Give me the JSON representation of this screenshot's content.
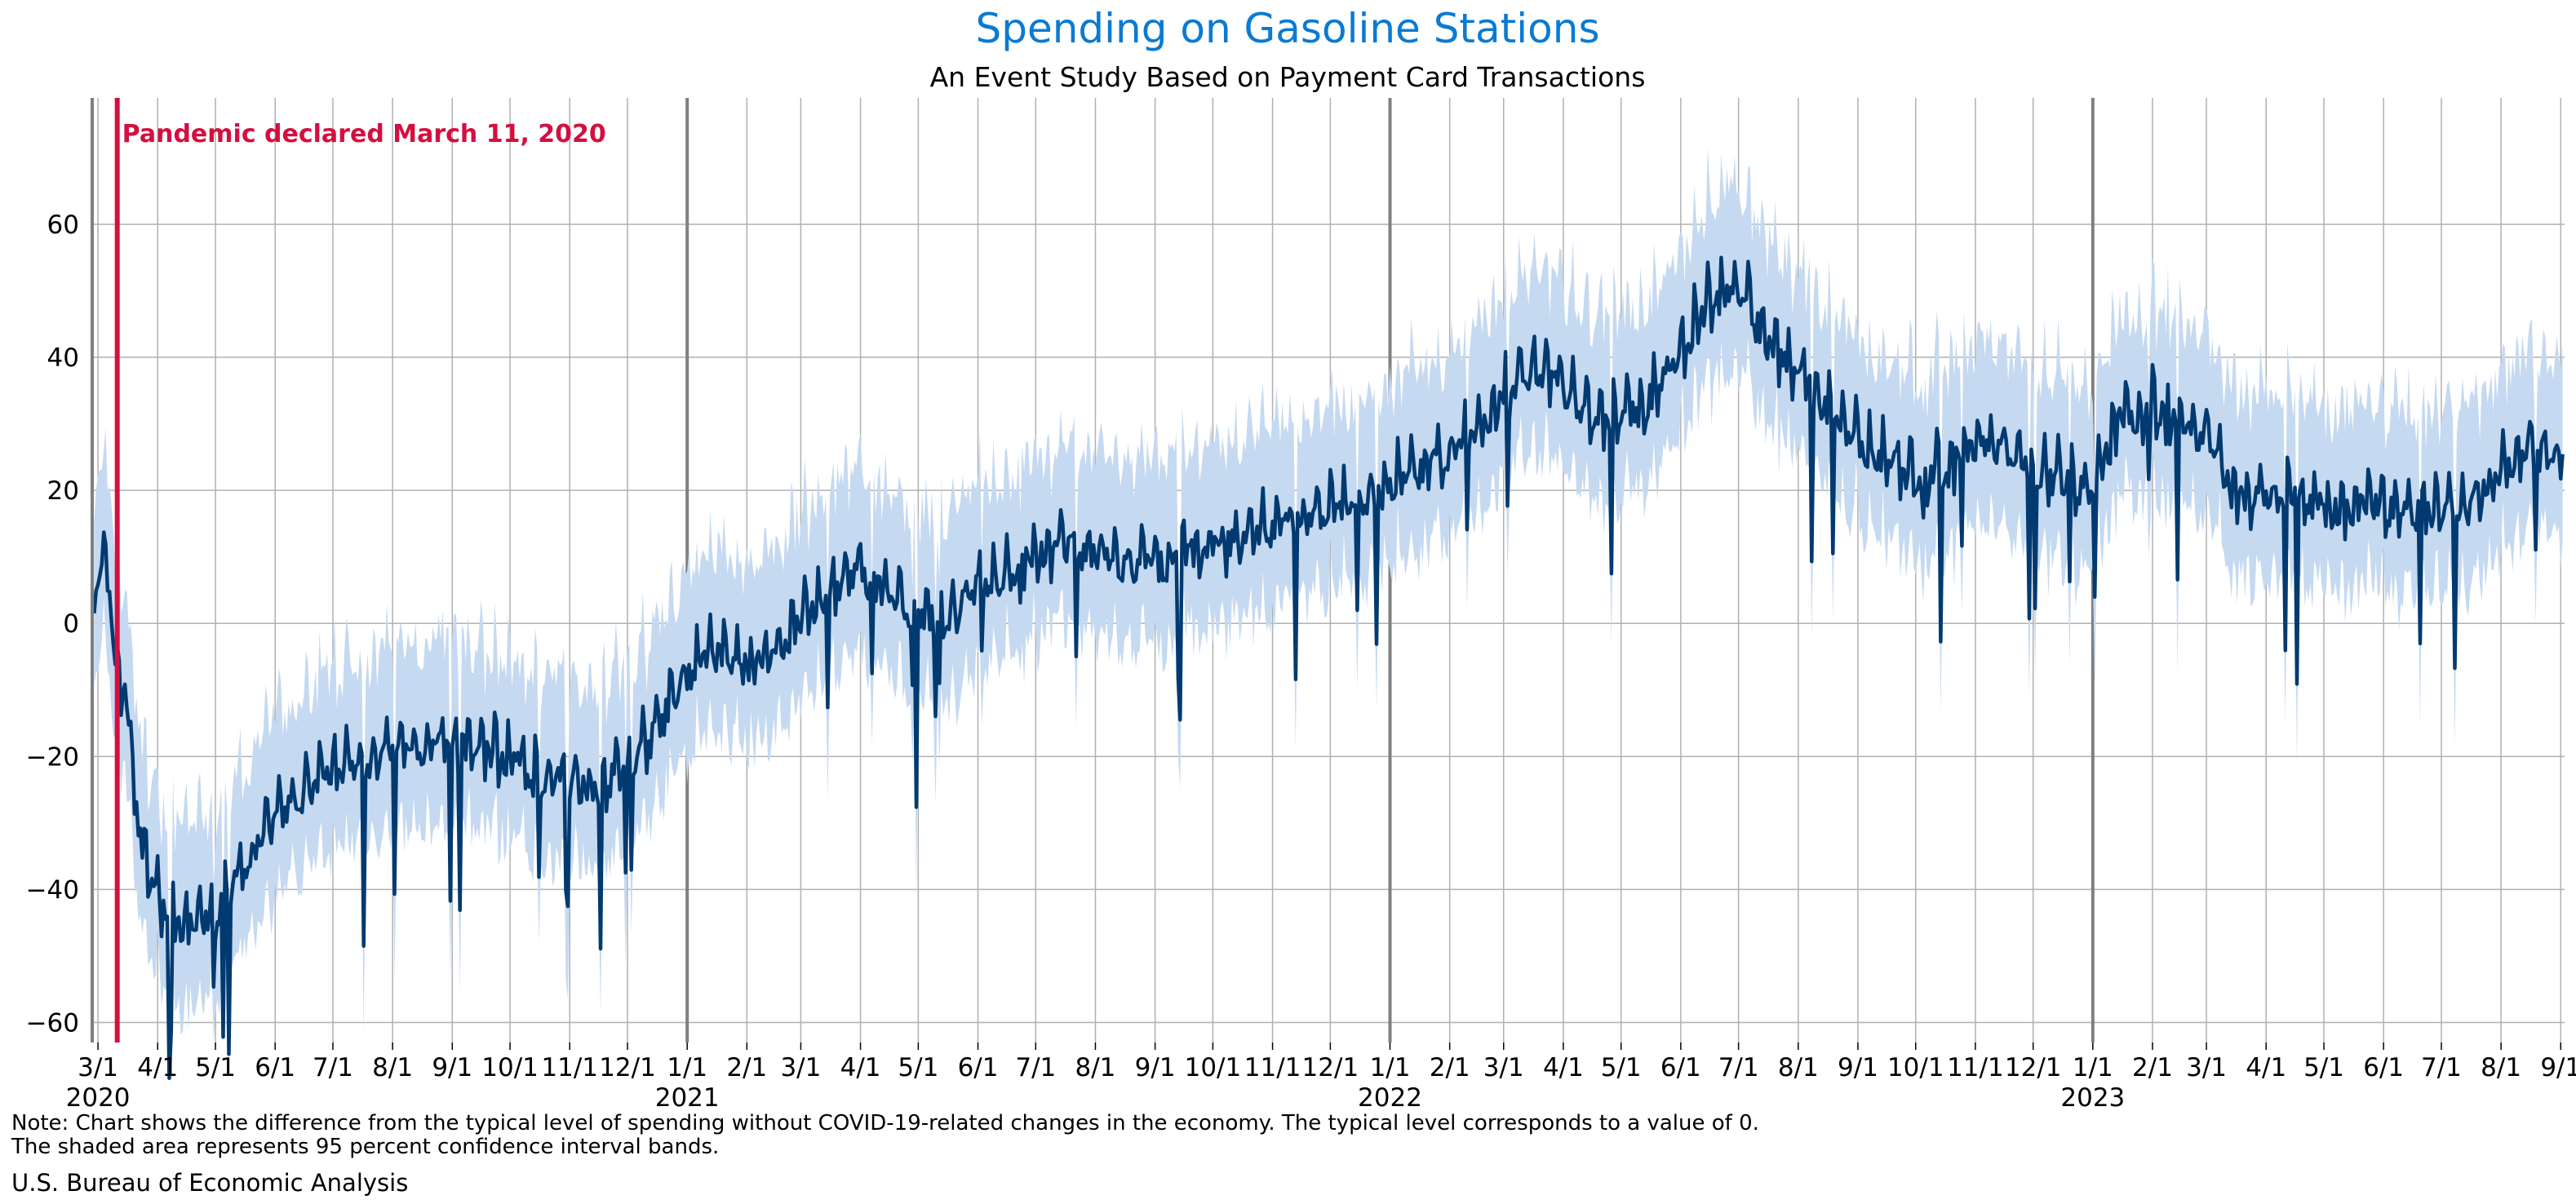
{
  "chart_data": {
    "type": "line",
    "title": "Spending on Gasoline Stations",
    "subtitle": "An Event Study Based on Payment Card Transactions",
    "xlabel": "",
    "ylabel": "",
    "ylim": [
      -63,
      79
    ],
    "yticks": [
      60,
      40,
      20,
      0,
      -20,
      -40,
      -60
    ],
    "yticklabels": [
      "60",
      "40",
      "20",
      "0",
      "−20",
      "−40",
      "−60"
    ],
    "xlim": [
      "2020-02-27",
      "2023-09-03"
    ],
    "grid": true,
    "x_ticks": [
      {
        "date": "2020-03-01",
        "label": "3/1",
        "year": "2020"
      },
      {
        "date": "2020-04-01",
        "label": "4/1"
      },
      {
        "date": "2020-05-01",
        "label": "5/1"
      },
      {
        "date": "2020-06-01",
        "label": "6/1"
      },
      {
        "date": "2020-07-01",
        "label": "7/1"
      },
      {
        "date": "2020-08-01",
        "label": "8/1"
      },
      {
        "date": "2020-09-01",
        "label": "9/1"
      },
      {
        "date": "2020-10-01",
        "label": "10/1"
      },
      {
        "date": "2020-11-01",
        "label": "11/1"
      },
      {
        "date": "2020-12-01",
        "label": "12/1"
      },
      {
        "date": "2021-01-01",
        "label": "1/1",
        "year": "2021",
        "major": true
      },
      {
        "date": "2021-02-01",
        "label": "2/1"
      },
      {
        "date": "2021-03-01",
        "label": "3/1"
      },
      {
        "date": "2021-04-01",
        "label": "4/1"
      },
      {
        "date": "2021-05-01",
        "label": "5/1"
      },
      {
        "date": "2021-06-01",
        "label": "6/1"
      },
      {
        "date": "2021-07-01",
        "label": "7/1"
      },
      {
        "date": "2021-08-01",
        "label": "8/1"
      },
      {
        "date": "2021-09-01",
        "label": "9/1"
      },
      {
        "date": "2021-10-01",
        "label": "10/1"
      },
      {
        "date": "2021-11-01",
        "label": "11/1"
      },
      {
        "date": "2021-12-01",
        "label": "12/1"
      },
      {
        "date": "2022-01-01",
        "label": "1/1",
        "year": "2022",
        "major": true
      },
      {
        "date": "2022-02-01",
        "label": "2/1"
      },
      {
        "date": "2022-03-01",
        "label": "3/1"
      },
      {
        "date": "2022-04-01",
        "label": "4/1"
      },
      {
        "date": "2022-05-01",
        "label": "5/1"
      },
      {
        "date": "2022-06-01",
        "label": "6/1"
      },
      {
        "date": "2022-07-01",
        "label": "7/1"
      },
      {
        "date": "2022-08-01",
        "label": "8/1"
      },
      {
        "date": "2022-09-01",
        "label": "9/1"
      },
      {
        "date": "2022-10-01",
        "label": "10/1"
      },
      {
        "date": "2022-11-01",
        "label": "11/1"
      },
      {
        "date": "2022-12-01",
        "label": "12/1"
      },
      {
        "date": "2023-01-01",
        "label": "1/1",
        "year": "2023",
        "major": true
      },
      {
        "date": "2023-02-01",
        "label": "2/1"
      },
      {
        "date": "2023-03-01",
        "label": "3/1"
      },
      {
        "date": "2023-04-01",
        "label": "4/1"
      },
      {
        "date": "2023-05-01",
        "label": "5/1"
      },
      {
        "date": "2023-06-01",
        "label": "6/1"
      },
      {
        "date": "2023-07-01",
        "label": "7/1"
      },
      {
        "date": "2023-08-01",
        "label": "8/1"
      },
      {
        "date": "2023-09-01",
        "label": "9/1"
      }
    ],
    "annotation": {
      "date": "2020-03-11",
      "label": "Pandemic declared March 11, 2020"
    },
    "series": [
      {
        "values_semimonthly": [
          [
            "2020-02-28",
            6
          ],
          [
            "2020-03-05",
            8
          ],
          [
            "2020-03-11",
            -8
          ],
          [
            "2020-03-16",
            -12
          ],
          [
            "2020-03-22",
            -32
          ],
          [
            "2020-04-01",
            -42
          ],
          [
            "2020-04-15",
            -46
          ],
          [
            "2020-05-01",
            -44
          ],
          [
            "2020-05-15",
            -38
          ],
          [
            "2020-06-01",
            -30
          ],
          [
            "2020-06-15",
            -26
          ],
          [
            "2020-07-01",
            -22
          ],
          [
            "2020-07-15",
            -21
          ],
          [
            "2020-08-01",
            -20
          ],
          [
            "2020-08-15",
            -19
          ],
          [
            "2020-09-01",
            -19
          ],
          [
            "2020-09-15",
            -19
          ],
          [
            "2020-10-01",
            -21
          ],
          [
            "2020-10-15",
            -24
          ],
          [
            "2020-11-01",
            -24
          ],
          [
            "2020-11-15",
            -25
          ],
          [
            "2020-12-01",
            -22
          ],
          [
            "2020-12-15",
            -17
          ],
          [
            "2021-01-01",
            -8
          ],
          [
            "2021-01-15",
            -5
          ],
          [
            "2021-02-01",
            -7
          ],
          [
            "2021-02-15",
            -5
          ],
          [
            "2021-03-01",
            0
          ],
          [
            "2021-03-15",
            4
          ],
          [
            "2021-04-01",
            7
          ],
          [
            "2021-04-15",
            4
          ],
          [
            "2021-05-01",
            1
          ],
          [
            "2021-05-15",
            0
          ],
          [
            "2021-06-01",
            5
          ],
          [
            "2021-06-15",
            7
          ],
          [
            "2021-07-01",
            10
          ],
          [
            "2021-07-15",
            11
          ],
          [
            "2021-08-01",
            10
          ],
          [
            "2021-08-15",
            8
          ],
          [
            "2021-09-01",
            8
          ],
          [
            "2021-09-15",
            10
          ],
          [
            "2021-10-01",
            11
          ],
          [
            "2021-10-15",
            12
          ],
          [
            "2021-11-01",
            14
          ],
          [
            "2021-11-15",
            15
          ],
          [
            "2021-12-01",
            16
          ],
          [
            "2021-12-15",
            18
          ],
          [
            "2022-01-01",
            20
          ],
          [
            "2022-01-15",
            22
          ],
          [
            "2022-02-01",
            25
          ],
          [
            "2022-02-15",
            29
          ],
          [
            "2022-03-01",
            33
          ],
          [
            "2022-03-15",
            38
          ],
          [
            "2022-04-01",
            35
          ],
          [
            "2022-04-15",
            30
          ],
          [
            "2022-05-01",
            30
          ],
          [
            "2022-05-15",
            33
          ],
          [
            "2022-06-01",
            40
          ],
          [
            "2022-06-15",
            48
          ],
          [
            "2022-07-01",
            50
          ],
          [
            "2022-07-15",
            42
          ],
          [
            "2022-08-01",
            37
          ],
          [
            "2022-08-15",
            32
          ],
          [
            "2022-09-01",
            27
          ],
          [
            "2022-09-15",
            24
          ],
          [
            "2022-10-01",
            22
          ],
          [
            "2022-10-15",
            22
          ],
          [
            "2022-11-01",
            27
          ],
          [
            "2022-11-15",
            26
          ],
          [
            "2022-12-01",
            23
          ],
          [
            "2022-12-15",
            21
          ],
          [
            "2023-01-01",
            20
          ],
          [
            "2023-01-15",
            30
          ],
          [
            "2023-02-01",
            32
          ],
          [
            "2023-02-15",
            30
          ],
          [
            "2023-03-01",
            28
          ],
          [
            "2023-03-15",
            19
          ],
          [
            "2023-04-01",
            18
          ],
          [
            "2023-04-15",
            18
          ],
          [
            "2023-05-01",
            17
          ],
          [
            "2023-05-15",
            17
          ],
          [
            "2023-06-01",
            17
          ],
          [
            "2023-06-15",
            16
          ],
          [
            "2023-07-01",
            17
          ],
          [
            "2023-07-15",
            17
          ],
          [
            "2023-08-01",
            22
          ],
          [
            "2023-08-15",
            26
          ],
          [
            "2023-09-01",
            24
          ]
        ],
        "ci_halfwidth": 12,
        "color": "#003a70"
      }
    ],
    "band_color": "#c5d9f1"
  },
  "footer": {
    "note_line1": "Note: Chart shows the difference from the typical level of spending without COVID-19-related changes in the economy. The typical level corresponds to a value of 0.",
    "note_line2": "The shaded area represents 95 percent confidence interval bands.",
    "source": "U.S. Bureau of Economic Analysis"
  },
  "colors": {
    "title": "#0a7ad2",
    "annotation": "#d40f3f",
    "line": "#003a70",
    "band": "#c5d9f1",
    "grid": "#b0b0b0",
    "year_line": "#808080"
  }
}
